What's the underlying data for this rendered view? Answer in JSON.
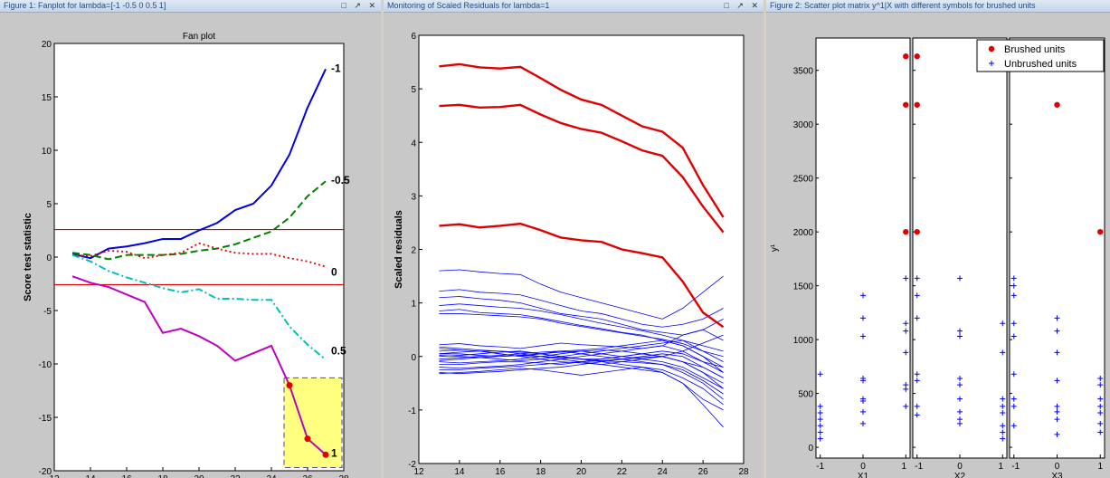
{
  "windows": [
    {
      "title": "Figure 1: Fanplot for lambda=[-1 -0.5 0 0.5 1]",
      "buttons": "□ ↗ ✕"
    },
    {
      "title": "Monitoring of Scaled Residuals for lambda=1",
      "buttons": "□ ↗ ✕"
    },
    {
      "title": "Figure 2: Scatter plot matrix y^1|X with different symbols for brushed units",
      "buttons": ""
    }
  ],
  "colors": {
    "neg1": "#0000e0",
    "neg05": "#008000",
    "zero": "#e00000",
    "pos05": "#00bfbf",
    "pos1": "#c000c0",
    "threshold": "#e00000",
    "brushed": "#e00000",
    "unbrushed": "#0000ff",
    "highlight": "#ffff80"
  },
  "chart_data": [
    {
      "type": "line",
      "title": "Fan plot",
      "xlabel": "Subset size m",
      "ylabel": "Score test statistic",
      "xlim": [
        12,
        28
      ],
      "ylim": [
        -20,
        20
      ],
      "xticks": [
        12,
        14,
        16,
        18,
        20,
        22,
        24,
        26,
        28
      ],
      "yticks": [
        -20,
        -15,
        -10,
        -5,
        0,
        5,
        10,
        15,
        20
      ],
      "thresholds": [
        2.58,
        -2.58
      ],
      "x": [
        13,
        14,
        15,
        16,
        17,
        18,
        19,
        20,
        21,
        22,
        23,
        24,
        25,
        26,
        27
      ],
      "series": [
        {
          "name": "-1",
          "style": "solid",
          "color": "#0000e0",
          "values": [
            0.3,
            -0.1,
            0.8,
            1.0,
            1.3,
            1.7,
            1.7,
            2.5,
            3.2,
            4.4,
            5.0,
            6.7,
            9.6,
            14.0,
            17.6
          ]
        },
        {
          "name": "-0.5",
          "style": "dash",
          "color": "#008000",
          "values": [
            0.4,
            0.2,
            -0.2,
            0.2,
            0.2,
            0.2,
            0.3,
            0.6,
            0.8,
            1.2,
            1.8,
            2.4,
            3.7,
            5.7,
            7.1
          ]
        },
        {
          "name": "0",
          "style": "dot",
          "color": "#e00000",
          "values": [
            0.2,
            0.1,
            0.6,
            0.5,
            -0.1,
            0.2,
            0.4,
            1.3,
            0.8,
            0.4,
            0.3,
            0.3,
            -0.1,
            -0.4,
            -0.9
          ]
        },
        {
          "name": "0.5",
          "style": "dashdot",
          "color": "#00bfbf",
          "values": [
            0.2,
            -0.4,
            -1.3,
            -1.9,
            -2.4,
            -2.9,
            -3.3,
            -3.0,
            -3.9,
            -3.9,
            -4.0,
            -4.0,
            -6.5,
            -8.2,
            -9.6
          ]
        },
        {
          "name": "1",
          "style": "solid",
          "color": "#c000c0",
          "values": [
            -1.8,
            -2.4,
            -2.8,
            -3.5,
            -4.2,
            -7.1,
            -6.7,
            -7.4,
            -8.3,
            -9.7,
            -9.0,
            -8.3,
            -12.0,
            -17.0,
            -18.5
          ]
        }
      ],
      "brushed_x": [
        25,
        26,
        27
      ],
      "brushed_series": "1",
      "brush_box": {
        "x": [
          24.7,
          27.9
        ],
        "y": [
          -19.7,
          -11.3
        ]
      }
    },
    {
      "type": "line",
      "title": "",
      "xlabel": "Subset size m",
      "ylabel": "Scaled residuals",
      "xlim": [
        12,
        28
      ],
      "ylim": [
        -2,
        6
      ],
      "xticks": [
        12,
        14,
        16,
        18,
        20,
        22,
        24,
        26,
        28
      ],
      "yticks": [
        -2,
        -1,
        0,
        1,
        2,
        3,
        4,
        5,
        6
      ],
      "x": [
        13,
        14,
        15,
        16,
        17,
        18,
        19,
        20,
        21,
        22,
        23,
        24,
        25,
        26,
        27
      ],
      "brushed_series": [
        [
          5.42,
          5.46,
          5.4,
          5.38,
          5.41,
          5.2,
          4.98,
          4.8,
          4.7,
          4.5,
          4.3,
          4.2,
          3.9,
          3.2,
          2.6
        ],
        [
          4.68,
          4.7,
          4.65,
          4.66,
          4.7,
          4.52,
          4.36,
          4.25,
          4.18,
          4.02,
          3.85,
          3.75,
          3.35,
          2.8,
          2.32
        ],
        [
          2.44,
          2.47,
          2.41,
          2.44,
          2.48,
          2.36,
          2.22,
          2.17,
          2.14,
          2.0,
          1.93,
          1.85,
          1.4,
          0.82,
          0.55
        ]
      ],
      "unbrushed_series": [
        [
          1.6,
          1.62,
          1.58,
          1.55,
          1.53,
          1.35,
          1.2,
          1.1,
          1.0,
          0.9,
          0.8,
          0.7,
          0.9,
          1.2,
          1.5
        ],
        [
          1.22,
          1.25,
          1.2,
          1.18,
          1.15,
          1.05,
          0.95,
          0.85,
          0.8,
          0.7,
          0.6,
          0.55,
          0.6,
          0.7,
          0.9
        ],
        [
          1.1,
          1.12,
          1.08,
          1.05,
          1.0,
          0.9,
          0.8,
          0.75,
          0.7,
          0.6,
          0.5,
          0.45,
          0.4,
          0.5,
          0.7
        ],
        [
          0.95,
          0.98,
          0.95,
          0.92,
          0.9,
          0.85,
          0.78,
          0.7,
          0.62,
          0.55,
          0.48,
          0.4,
          0.3,
          0.2,
          0.1
        ],
        [
          0.85,
          0.88,
          0.82,
          0.8,
          0.78,
          0.72,
          0.65,
          0.58,
          0.52,
          0.45,
          0.4,
          0.3,
          0.2,
          0.0,
          -0.2
        ],
        [
          0.8,
          0.8,
          0.78,
          0.76,
          0.74,
          0.7,
          0.62,
          0.56,
          0.5,
          0.44,
          0.38,
          0.32,
          0.24,
          0.1,
          -0.1
        ],
        [
          0.22,
          0.24,
          0.2,
          0.18,
          0.15,
          0.2,
          0.25,
          0.22,
          0.2,
          0.18,
          0.15,
          0.2,
          0.4,
          0.5,
          0.3
        ],
        [
          0.1,
          0.12,
          0.1,
          0.05,
          0.0,
          0.05,
          0.1,
          0.12,
          0.15,
          0.2,
          0.25,
          0.3,
          0.2,
          0.0,
          -0.3
        ],
        [
          0.05,
          0.05,
          0.02,
          0.0,
          0.02,
          0.05,
          0.08,
          0.1,
          0.05,
          0.0,
          -0.05,
          -0.1,
          -0.2,
          -0.4,
          -0.6
        ],
        [
          0.0,
          0.02,
          0.05,
          0.08,
          0.1,
          0.05,
          0.0,
          -0.05,
          -0.05,
          0.0,
          0.05,
          0.1,
          0.05,
          -0.1,
          -0.3
        ],
        [
          -0.05,
          -0.02,
          0.0,
          0.02,
          0.05,
          0.08,
          0.1,
          0.05,
          0.0,
          -0.05,
          -0.1,
          -0.15,
          -0.3,
          -0.5,
          -0.8
        ],
        [
          -0.1,
          -0.12,
          -0.1,
          -0.08,
          -0.05,
          0.0,
          0.05,
          0.1,
          0.12,
          0.1,
          0.05,
          0.0,
          -0.1,
          -0.2,
          -0.4
        ],
        [
          -0.15,
          -0.15,
          -0.12,
          -0.1,
          -0.1,
          -0.12,
          -0.15,
          -0.1,
          -0.05,
          0.0,
          0.05,
          0.0,
          -0.1,
          -0.3,
          -0.5
        ],
        [
          0.15,
          0.12,
          0.1,
          0.1,
          0.08,
          0.05,
          0.0,
          -0.05,
          -0.1,
          -0.15,
          -0.2,
          -0.25,
          -0.4,
          -0.6,
          -0.9
        ],
        [
          -0.2,
          -0.22,
          -0.2,
          -0.18,
          -0.15,
          -0.1,
          -0.05,
          0.0,
          0.05,
          0.1,
          0.15,
          0.2,
          0.1,
          -0.1,
          -0.2
        ],
        [
          -0.3,
          -0.32,
          -0.3,
          -0.28,
          -0.25,
          -0.22,
          -0.2,
          -0.15,
          -0.1,
          -0.05,
          0.0,
          0.05,
          0.0,
          -0.2,
          -0.4
        ],
        [
          -0.32,
          -0.3,
          -0.28,
          -0.25,
          -0.22,
          -0.25,
          -0.3,
          -0.35,
          -0.3,
          -0.25,
          -0.2,
          -0.3,
          -0.5,
          -0.8,
          -1.0
        ],
        [
          0.05,
          0.08,
          0.1,
          0.05,
          0.0,
          -0.05,
          -0.1,
          -0.12,
          -0.15,
          -0.2,
          -0.25,
          -0.3,
          -0.5,
          -0.9,
          -1.32
        ],
        [
          0.02,
          0.0,
          -0.02,
          -0.05,
          -0.08,
          -0.05,
          0.0,
          0.05,
          0.1,
          0.15,
          0.2,
          0.25,
          0.3,
          0.1,
          0.0
        ],
        [
          -0.25,
          -0.25,
          -0.22,
          -0.2,
          -0.18,
          -0.15,
          -0.12,
          -0.1,
          -0.08,
          -0.05,
          -0.02,
          0.0,
          -0.1,
          -0.3,
          -0.6
        ],
        [
          0.18,
          0.15,
          0.12,
          0.1,
          0.05,
          0.0,
          -0.05,
          -0.1,
          -0.15,
          -0.1,
          -0.05,
          0.0,
          0.1,
          0.25,
          0.4
        ],
        [
          -0.08,
          -0.05,
          -0.02,
          0.0,
          0.02,
          0.0,
          -0.02,
          -0.05,
          -0.08,
          -0.1,
          -0.12,
          -0.15,
          -0.25,
          -0.45,
          -0.7
        ]
      ]
    },
    {
      "type": "scatter",
      "title": "",
      "ylabel": "y¹",
      "ylim": [
        -100,
        3800
      ],
      "yticks": [
        0,
        500,
        1000,
        1500,
        2000,
        2500,
        3000,
        3500
      ],
      "xticks": [
        -1,
        0,
        1
      ],
      "legend": {
        "position": "top-right",
        "entries": [
          "Brushed units",
          "Unbrushed units"
        ]
      },
      "panels": [
        {
          "xlabel": "X1",
          "brushed": [
            [
              1,
              3630
            ],
            [
              1,
              3180
            ],
            [
              1,
              2000
            ]
          ],
          "unbrushed": [
            [
              -1,
              680
            ],
            [
              -1,
              380
            ],
            [
              -1,
              320
            ],
            [
              -1,
              260
            ],
            [
              -1,
              200
            ],
            [
              -1,
              140
            ],
            [
              -1,
              80
            ],
            [
              0,
              1410
            ],
            [
              0,
              1200
            ],
            [
              0,
              1030
            ],
            [
              0,
              640
            ],
            [
              0,
              620
            ],
            [
              0,
              450
            ],
            [
              0,
              430
            ],
            [
              0,
              330
            ],
            [
              0,
              220
            ],
            [
              1,
              1570
            ],
            [
              1,
              1150
            ],
            [
              1,
              1080
            ],
            [
              1,
              880
            ],
            [
              1,
              580
            ],
            [
              1,
              540
            ],
            [
              1,
              380
            ]
          ]
        },
        {
          "xlabel": "X2",
          "brushed": [
            [
              -1,
              3630
            ],
            [
              -1,
              3180
            ],
            [
              -1,
              2000
            ]
          ],
          "unbrushed": [
            [
              -1,
              1570
            ],
            [
              -1,
              1410
            ],
            [
              -1,
              1200
            ],
            [
              -1,
              680
            ],
            [
              -1,
              620
            ],
            [
              -1,
              380
            ],
            [
              -1,
              300
            ],
            [
              0,
              1570
            ],
            [
              0,
              1080
            ],
            [
              0,
              1030
            ],
            [
              0,
              640
            ],
            [
              0,
              580
            ],
            [
              0,
              450
            ],
            [
              0,
              330
            ],
            [
              0,
              260
            ],
            [
              0,
              220
            ],
            [
              1,
              1150
            ],
            [
              1,
              880
            ],
            [
              1,
              450
            ],
            [
              1,
              380
            ],
            [
              1,
              320
            ],
            [
              1,
              200
            ],
            [
              1,
              140
            ],
            [
              1,
              80
            ]
          ]
        },
        {
          "xlabel": "X3",
          "brushed": [
            [
              0,
              3180
            ],
            [
              1,
              2000
            ]
          ],
          "unbrushed": [
            [
              -1,
              1570
            ],
            [
              -1,
              1500
            ],
            [
              -1,
              1410
            ],
            [
              -1,
              1150
            ],
            [
              -1,
              1030
            ],
            [
              -1,
              680
            ],
            [
              -1,
              450
            ],
            [
              -1,
              380
            ],
            [
              -1,
              200
            ],
            [
              0,
              1200
            ],
            [
              0,
              1080
            ],
            [
              0,
              880
            ],
            [
              0,
              620
            ],
            [
              0,
              380
            ],
            [
              0,
              330
            ],
            [
              0,
              260
            ],
            [
              0,
              120
            ],
            [
              1,
              640
            ],
            [
              1,
              580
            ],
            [
              1,
              450
            ],
            [
              1,
              380
            ],
            [
              1,
              320
            ],
            [
              1,
              220
            ],
            [
              1,
              140
            ]
          ]
        }
      ]
    }
  ]
}
